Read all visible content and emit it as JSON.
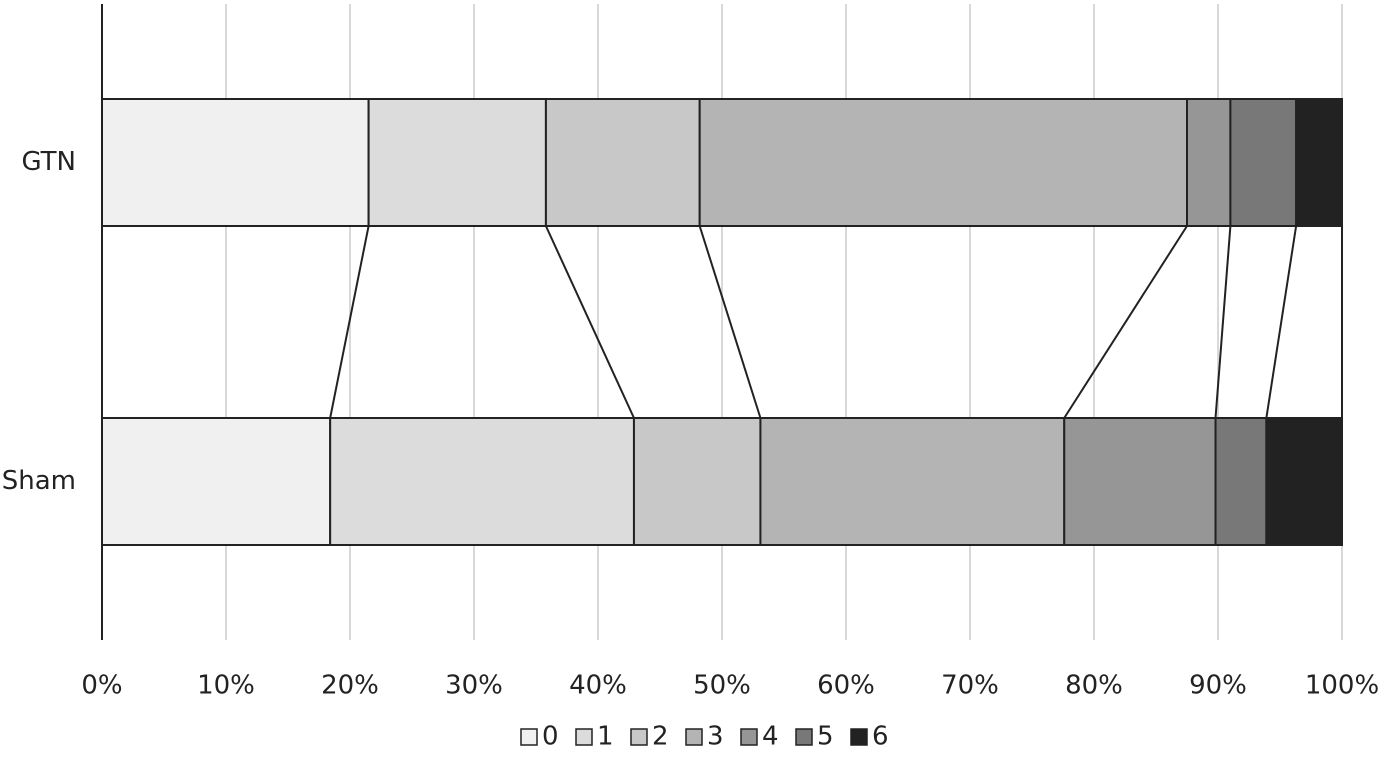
{
  "chart_data": {
    "type": "bar",
    "orientation": "horizontal",
    "stacked": true,
    "normalized": true,
    "title": "",
    "xlabel": "",
    "ylabel": "",
    "categories": [
      "GTN",
      "Sham"
    ],
    "xlim": [
      0,
      100
    ],
    "x_ticks": [
      "0%",
      "10%",
      "20%",
      "30%",
      "40%",
      "50%",
      "60%",
      "70%",
      "80%",
      "90%",
      "100%"
    ],
    "grid": true,
    "legend_position": "bottom",
    "series_lines": true,
    "series": [
      {
        "name": "0",
        "color": "#f0f0f0",
        "values": [
          21.5,
          18.4
        ]
      },
      {
        "name": "1",
        "color": "#dcdcdc",
        "values": [
          14.3,
          24.5
        ]
      },
      {
        "name": "2",
        "color": "#c8c8c8",
        "values": [
          12.4,
          10.2
        ]
      },
      {
        "name": "3",
        "color": "#b4b4b4",
        "values": [
          39.3,
          24.5
        ]
      },
      {
        "name": "4",
        "color": "#969696",
        "values": [
          3.5,
          12.2
        ]
      },
      {
        "name": "5",
        "color": "#787878",
        "values": [
          5.3,
          4.1
        ]
      },
      {
        "name": "6",
        "color": "#222222",
        "values": [
          3.7,
          6.1
        ]
      }
    ]
  }
}
